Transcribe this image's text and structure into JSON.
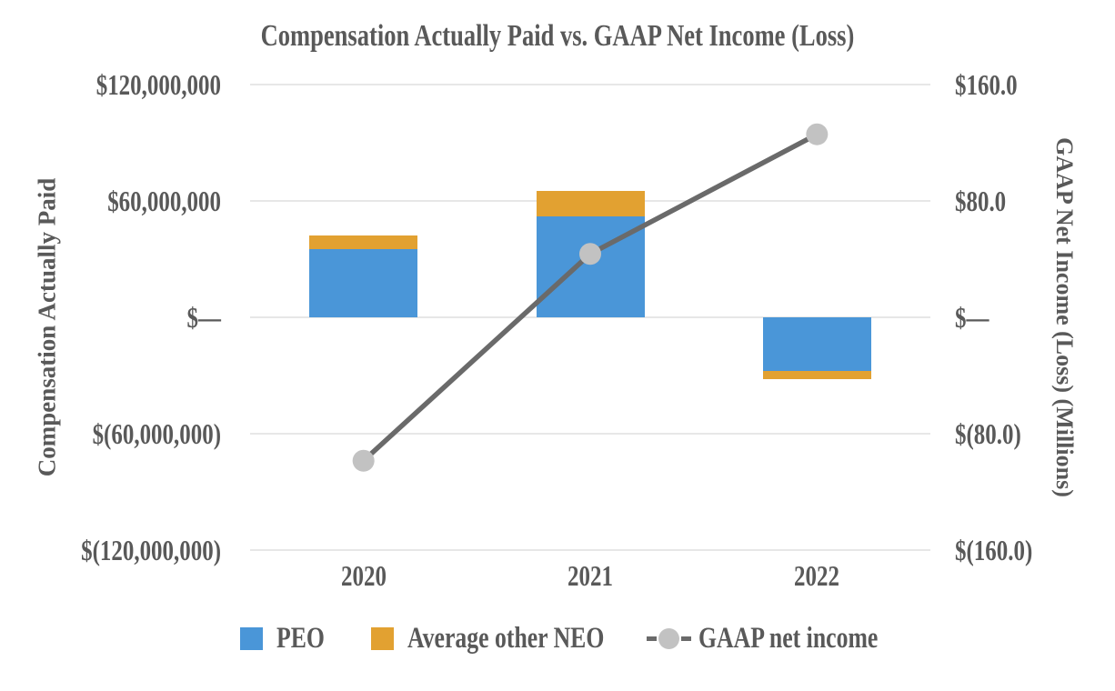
{
  "chart_data": {
    "type": "combo-bar-line",
    "title": "Compensation Actually Paid vs. GAAP Net Income (Loss)",
    "categories": [
      "2020",
      "2021",
      "2022"
    ],
    "series": [
      {
        "name": "PEO",
        "type": "bar",
        "stack": "cap",
        "axis": "left",
        "color": "#4A96D8",
        "values": [
          35000000,
          52000000,
          -27500000
        ]
      },
      {
        "name": "Average other NEO",
        "type": "bar",
        "stack": "cap",
        "axis": "left",
        "color": "#E2A131",
        "values": [
          7000000,
          13000000,
          -4500000
        ]
      },
      {
        "name": "GAAP net income",
        "type": "line",
        "axis": "right",
        "color": "#6A6A6A",
        "marker_color": "#C2C2C2",
        "values": [
          -98.6,
          43.6,
          125.8
        ],
        "unit": "millions"
      }
    ],
    "left_axis": {
      "title": "Compensation Actually Paid",
      "tick_labels": [
        "$120,000,000",
        "$60,000,000",
        "$—",
        "$(60,000,000)",
        "$(120,000,000)"
      ],
      "range": [
        -120000000,
        120000000
      ]
    },
    "right_axis": {
      "title": "GAAP Net Income (Loss) (Millions)",
      "tick_labels": [
        "$160.0",
        "$80.0",
        "$—",
        "$(80.0)",
        "$(160.0)"
      ],
      "range": [
        -160,
        160
      ]
    },
    "grid": "horizontal",
    "legend_position": "bottom",
    "legend": [
      "PEO",
      "Average other NEO",
      "GAAP net income"
    ]
  },
  "colors": {
    "peo_bar": "#4A96D8",
    "neo_bar": "#E2A131",
    "gaap_line": "#6A6A6A",
    "gaap_marker": "#C2C2C2",
    "gridline": "#E7E7E7",
    "text": "#595959",
    "background": "#FFFFFF"
  }
}
